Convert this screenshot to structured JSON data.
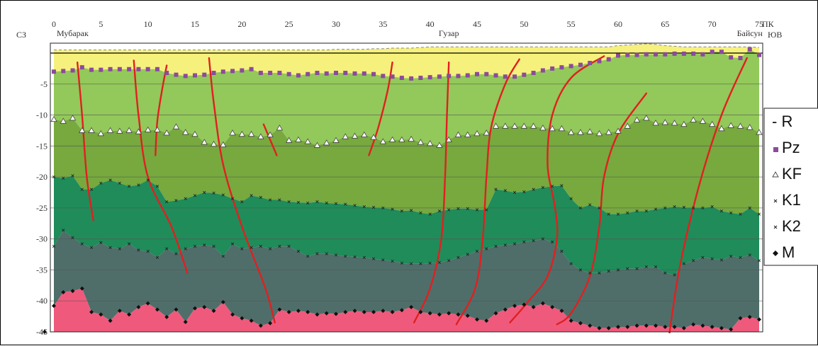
{
  "chart_data": {
    "type": "area",
    "x_axis_label_left": "СЗ",
    "x_axis_label_right": "ЮВ",
    "x_unit": "ПК",
    "x_ticks": [
      0,
      5,
      10,
      15,
      20,
      25,
      30,
      35,
      40,
      45,
      50,
      55,
      60,
      65,
      70,
      75
    ],
    "y_ticks": [
      -5,
      -10,
      -15,
      -20,
      -25,
      -30,
      -35,
      -40,
      -45
    ],
    "xlim": [
      0,
      75
    ],
    "ylim": [
      -45,
      0.5
    ],
    "grid": true,
    "places": [
      {
        "name": "Мубарак",
        "x": 0
      },
      {
        "name": "Гузар",
        "x": 42
      },
      {
        "name": "Байсун",
        "x": 74
      }
    ],
    "legend_position": "right",
    "legend": [
      {
        "label": "- R",
        "marker": "none",
        "key": "R"
      },
      {
        "label": "Pz",
        "marker": "square",
        "key": "Pz"
      },
      {
        "label": "KF",
        "marker": "triangle",
        "key": "KF"
      },
      {
        "label": "K1",
        "marker": "cross",
        "key": "K1"
      },
      {
        "label": "K2",
        "marker": "cross",
        "key": "K2"
      },
      {
        "label": "M",
        "marker": "diamond",
        "key": "M"
      }
    ],
    "x": [
      0,
      1,
      2,
      3,
      4,
      5,
      6,
      7,
      8,
      9,
      10,
      11,
      12,
      13,
      14,
      15,
      16,
      17,
      18,
      19,
      20,
      21,
      22,
      23,
      24,
      25,
      26,
      27,
      28,
      29,
      30,
      31,
      32,
      33,
      34,
      35,
      36,
      37,
      38,
      39,
      40,
      41,
      42,
      43,
      44,
      45,
      46,
      47,
      48,
      49,
      50,
      51,
      52,
      53,
      54,
      55,
      56,
      57,
      58,
      59,
      60,
      61,
      62,
      63,
      64,
      65,
      66,
      67,
      68,
      69,
      70,
      71,
      72,
      73,
      74,
      75
    ],
    "series": [
      {
        "name": "R",
        "marker": "none",
        "values": [
          0.5,
          0.5,
          0.5,
          0.5,
          0.5,
          0.5,
          0.5,
          0.5,
          0.5,
          0.5,
          0.5,
          0.5,
          0.5,
          0.5,
          0.5,
          0.5,
          0.5,
          0.5,
          0.5,
          0.5,
          0.5,
          0.5,
          0.5,
          0.5,
          0.5,
          0.5,
          0.5,
          0.5,
          0.5,
          0.5,
          0.6,
          0.6,
          0.6,
          0.6,
          0.7,
          0.7,
          0.8,
          0.8,
          0.8,
          0.9,
          1.0,
          1.0,
          1.0,
          1.0,
          1.0,
          1.0,
          1.0,
          1.0,
          1.0,
          1.0,
          1.0,
          1.0,
          1.0,
          1.0,
          1.0,
          1.0,
          1.0,
          1.0,
          1.0,
          1.0,
          1.2,
          1.3,
          1.4,
          1.5,
          1.4,
          1.2,
          1.1,
          1.0,
          1.0,
          1.0,
          1.0,
          1.0,
          1.0,
          1.0,
          1.0,
          0.9
        ]
      },
      {
        "name": "Pz",
        "marker": "square",
        "values": [
          -3.0,
          -2.9,
          -2.8,
          -2.3,
          -2.7,
          -2.7,
          -2.6,
          -2.6,
          -2.6,
          -2.6,
          -2.6,
          -2.6,
          -3.2,
          -3.5,
          -3.7,
          -3.6,
          -3.5,
          -3.2,
          -3.0,
          -2.9,
          -2.8,
          -2.6,
          -3.2,
          -3.2,
          -3.2,
          -3.4,
          -3.6,
          -3.4,
          -3.2,
          -3.3,
          -3.2,
          -3.2,
          -3.3,
          -3.3,
          -3.4,
          -3.7,
          -3.8,
          -4.0,
          -4.1,
          -4.0,
          -3.9,
          -3.8,
          -3.7,
          -3.7,
          -3.6,
          -3.4,
          -3.4,
          -3.6,
          -3.8,
          -3.8,
          -3.5,
          -3.2,
          -2.8,
          -2.5,
          -2.3,
          -2.1,
          -1.9,
          -1.6,
          -1.3,
          -1.0,
          -0.4,
          -0.3,
          -0.3,
          -0.2,
          -0.2,
          -0.2,
          -0.1,
          -0.1,
          -0.1,
          -0.2,
          0.2,
          0.2,
          -0.7,
          -0.8,
          0.6,
          -0.3
        ]
      },
      {
        "name": "KF",
        "marker": "triangle",
        "values": [
          -10.7,
          -11.0,
          -10.5,
          -12.5,
          -12.5,
          -13.0,
          -12.5,
          -12.6,
          -12.5,
          -12.7,
          -12.4,
          -12.4,
          -12.9,
          -11.9,
          -12.8,
          -13.1,
          -14.4,
          -14.7,
          -14.8,
          -12.9,
          -13.1,
          -13.1,
          -13.5,
          -13.2,
          -12.1,
          -14.1,
          -14.0,
          -14.3,
          -14.9,
          -14.5,
          -14.1,
          -13.5,
          -13.4,
          -13.2,
          -13.6,
          -14.3,
          -14.0,
          -14.0,
          -13.9,
          -14.4,
          -14.6,
          -14.9,
          -14.0,
          -13.2,
          -13.2,
          -13.0,
          -12.9,
          -11.8,
          -11.8,
          -11.8,
          -11.8,
          -11.8,
          -12.1,
          -12.2,
          -12.2,
          -12.8,
          -12.8,
          -12.7,
          -13.0,
          -12.8,
          -12.6,
          -11.8,
          -10.8,
          -10.5,
          -11.3,
          -11.2,
          -11.3,
          -11.5,
          -10.8,
          -11.0,
          -11.5,
          -12.2,
          -11.7,
          -11.8,
          -12.0,
          -12.8
        ]
      },
      {
        "name": "K1",
        "marker": "cross",
        "values": [
          -20.0,
          -20.2,
          -19.8,
          -22.0,
          -22.0,
          -21.0,
          -20.5,
          -21.0,
          -21.5,
          -21.3,
          -20.5,
          -21.5,
          -24.0,
          -23.8,
          -23.5,
          -23.0,
          -22.5,
          -22.6,
          -22.9,
          -23.5,
          -24.0,
          -23.0,
          -23.3,
          -23.7,
          -23.7,
          -24.0,
          -24.1,
          -24.2,
          -24.0,
          -24.2,
          -24.3,
          -24.4,
          -24.6,
          -24.8,
          -24.9,
          -25.0,
          -25.2,
          -25.5,
          -25.4,
          -25.8,
          -26.0,
          -25.5,
          -25.3,
          -25.1,
          -25.1,
          -25.3,
          -25.3,
          -22.0,
          -22.2,
          -22.5,
          -22.4,
          -22.0,
          -21.7,
          -21.5,
          -21.4,
          -23.5,
          -25.0,
          -24.5,
          -25.0,
          -26.0,
          -26.0,
          -25.8,
          -25.5,
          -25.5,
          -25.2,
          -25.0,
          -24.8,
          -24.9,
          -25.0,
          -25.0,
          -24.8,
          -25.5,
          -25.8,
          -26.0,
          -25.0,
          -26.0
        ]
      },
      {
        "name": "K2",
        "marker": "cross",
        "values": [
          -31.2,
          -28.6,
          -29.8,
          -30.8,
          -31.4,
          -30.6,
          -31.4,
          -31.6,
          -30.8,
          -31.8,
          -32.0,
          -33.0,
          -31.6,
          -32.4,
          -31.6,
          -31.2,
          -31.0,
          -31.2,
          -32.8,
          -30.8,
          -31.6,
          -31.4,
          -31.2,
          -31.6,
          -31.2,
          -31.2,
          -32.0,
          -32.8,
          -32.4,
          -32.4,
          -32.6,
          -32.8,
          -32.9,
          -33.0,
          -33.2,
          -33.4,
          -33.6,
          -33.9,
          -34.0,
          -34.0,
          -33.9,
          -33.8,
          -33.5,
          -33.0,
          -32.5,
          -32.0,
          -31.6,
          -31.2,
          -31.0,
          -30.8,
          -30.5,
          -30.3,
          -30.0,
          -30.5,
          -32.0,
          -34.0,
          -35.0,
          -35.5,
          -35.5,
          -35.2,
          -35.0,
          -34.8,
          -34.8,
          -34.5,
          -34.5,
          -35.5,
          -35.8,
          -34.0,
          -33.5,
          -33.0,
          -33.2,
          -33.4,
          -32.8,
          -33.0,
          -32.6,
          -33.5
        ]
      },
      {
        "name": "M",
        "marker": "diamond",
        "values": [
          -40.8,
          -38.6,
          -38.4,
          -38.0,
          -41.8,
          -42.2,
          -43.2,
          -41.6,
          -42.2,
          -41.0,
          -40.4,
          -41.4,
          -42.6,
          -41.4,
          -43.4,
          -41.2,
          -41.0,
          -41.6,
          -40.2,
          -42.2,
          -42.8,
          -43.2,
          -44.0,
          -43.6,
          -41.4,
          -41.8,
          -41.6,
          -41.8,
          -42.2,
          -42.0,
          -42.1,
          -41.8,
          -41.6,
          -41.8,
          -41.8,
          -41.6,
          -41.8,
          -41.5,
          -41.0,
          -41.8,
          -42.0,
          -42.2,
          -42.0,
          -42.2,
          -42.4,
          -43.0,
          -43.2,
          -42.0,
          -41.4,
          -40.8,
          -40.6,
          -41.0,
          -40.4,
          -41.0,
          -41.6,
          -43.2,
          -43.6,
          -44.0,
          -44.4,
          -44.4,
          -44.2,
          -44.2,
          -44.0,
          -44.0,
          -44.0,
          -44.2,
          -44.2,
          -44.4,
          -43.8,
          -44.0,
          -44.2,
          -44.4,
          -44.6,
          -42.8,
          -42.6,
          -43.0
        ]
      }
    ],
    "colors": {
      "R": "#f6f17c",
      "Pz": "#93c85a",
      "KF": "#77a93e",
      "K1": "#1f8c5a",
      "K2": "#4f6e6a",
      "M": "#ef5a7c",
      "fault": "#e02020",
      "grid": "#555555",
      "pz_marker": "#8b4a9c"
    },
    "faults": [
      [
        [
          2.5,
          -1.5
        ],
        [
          3.0,
          -10.0
        ],
        [
          3.5,
          -20.0
        ],
        [
          4.2,
          -27.0
        ]
      ],
      [
        [
          8.5,
          -1.2
        ],
        [
          9.0,
          -10.0
        ],
        [
          10.0,
          -20.0
        ],
        [
          12.5,
          -28.0
        ],
        [
          14.2,
          -35.5
        ]
      ],
      [
        [
          12.0,
          -2.0
        ],
        [
          11.5,
          -6.0
        ],
        [
          11.0,
          -11.0
        ],
        [
          10.8,
          -16.5
        ]
      ],
      [
        [
          16.5,
          -0.8
        ],
        [
          17.0,
          -8.0
        ],
        [
          18.0,
          -18.0
        ],
        [
          20.0,
          -28.0
        ],
        [
          22.5,
          -38.0
        ],
        [
          23.5,
          -43.5
        ]
      ],
      [
        [
          22.3,
          -11.5
        ],
        [
          23.0,
          -14.0
        ],
        [
          23.7,
          -16.5
        ]
      ],
      [
        [
          36.0,
          -1.5
        ],
        [
          35.5,
          -6.0
        ],
        [
          34.5,
          -12.0
        ],
        [
          33.5,
          -16.5
        ]
      ],
      [
        [
          42.0,
          -1.5
        ],
        [
          41.8,
          -10.0
        ],
        [
          41.6,
          -20.0
        ],
        [
          41.2,
          -30.0
        ],
        [
          40.0,
          -38.0
        ],
        [
          38.3,
          -43.5
        ]
      ],
      [
        [
          49.5,
          -1.0
        ],
        [
          48.0,
          -5.0
        ],
        [
          46.5,
          -12.0
        ],
        [
          46.0,
          -20.0
        ],
        [
          45.6,
          -30.0
        ],
        [
          44.8,
          -38.0
        ],
        [
          42.8,
          -43.8
        ]
      ],
      [
        [
          58.5,
          -0.5
        ],
        [
          55.0,
          -4.0
        ],
        [
          53.0,
          -10.0
        ],
        [
          52.5,
          -18.0
        ],
        [
          53.3,
          -25.0
        ],
        [
          53.5,
          -30.0
        ],
        [
          52.5,
          -36.0
        ],
        [
          50.5,
          -40.0
        ],
        [
          48.5,
          -43.5
        ]
      ],
      [
        [
          63.0,
          -6.5
        ],
        [
          60.0,
          -13.0
        ],
        [
          58.5,
          -20.0
        ],
        [
          58.0,
          -28.0
        ],
        [
          57.0,
          -36.0
        ],
        [
          55.0,
          -42.0
        ],
        [
          53.5,
          -43.8
        ]
      ],
      [
        [
          73.7,
          -0.8
        ],
        [
          71.0,
          -10.0
        ],
        [
          68.5,
          -22.0
        ],
        [
          66.5,
          -35.0
        ],
        [
          65.3,
          -47.0
        ]
      ]
    ]
  }
}
